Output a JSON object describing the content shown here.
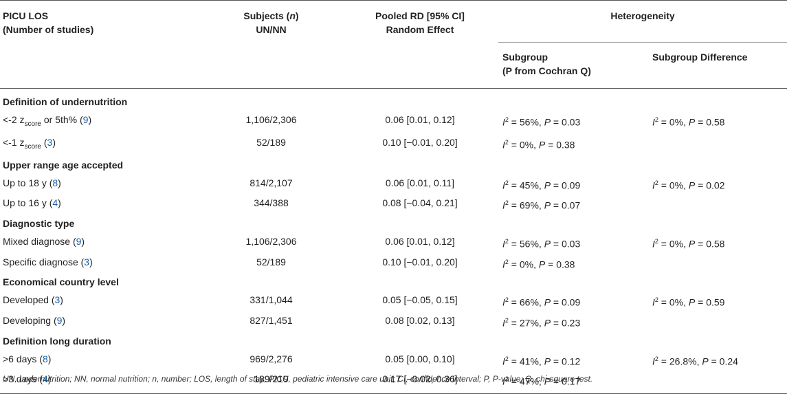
{
  "headers": {
    "col1_line1": "PICU LOS",
    "col1_line2": "(Number of studies)",
    "col2_line1_pre": "Subjects (",
    "col2_line1_n": "n",
    "col2_line1_post": ")",
    "col2_line2": "UN/NN",
    "col3_line1": "Pooled RD [95% CI]",
    "col3_line2": "Random Effect",
    "col4_group": "Heterogeneity",
    "sub1_line1": "Subgroup",
    "sub1_line2": "(P from Cochran Q)",
    "sub2": "Subgroup Difference"
  },
  "sections": [
    {
      "title": "Definition of undernutrition",
      "rows": [
        {
          "label_pre": "<-2 z",
          "label_sub": "score",
          "label_post": " or 5th% (",
          "n": "9",
          "label_end": ")",
          "subjects": "1,106/2,306",
          "rd": "0.06 [0.01, 0.12]",
          "i2": "56%",
          "p": "0.03",
          "diff_i2": "0%",
          "diff_p": "0.58"
        },
        {
          "label_pre": "<-1 z",
          "label_sub": "score",
          "label_post": " (",
          "n": "3",
          "label_end": ")",
          "subjects": "52/189",
          "rd": "0.10 [−0.01, 0.20]",
          "i2": "0%",
          "p": "0.38",
          "diff_i2": "",
          "diff_p": ""
        }
      ]
    },
    {
      "title": "Upper range age accepted",
      "rows": [
        {
          "label_pre": "Up to 18 y (",
          "label_sub": "",
          "label_post": "",
          "n": "8",
          "label_end": ")",
          "subjects": "814/2,107",
          "rd": "0.06 [0.01, 0.11]",
          "i2": "45%",
          "p": "0.09",
          "diff_i2": "0%",
          "diff_p": "0.02"
        },
        {
          "label_pre": "Up to 16 y (",
          "label_sub": "",
          "label_post": "",
          "n": "4",
          "label_end": ")",
          "subjects": "344/388",
          "rd": "0.08 [−0.04, 0.21]",
          "i2": "69%",
          "p": "0.07",
          "diff_i2": "",
          "diff_p": ""
        }
      ]
    },
    {
      "title": "Diagnostic type",
      "rows": [
        {
          "label_pre": "Mixed diagnose (",
          "label_sub": "",
          "label_post": "",
          "n": "9",
          "label_end": ")",
          "subjects": "1,106/2,306",
          "rd": "0.06 [0.01, 0.12]",
          "i2": "56%",
          "p": "0.03",
          "diff_i2": "0%",
          "diff_p": "0.58"
        },
        {
          "label_pre": "Specific diagnose (",
          "label_sub": "",
          "label_post": "",
          "n": "3",
          "label_end": ")",
          "subjects": "52/189",
          "rd": "0.10 [−0.01, 0.20]",
          "i2": "0%",
          "p": "0.38",
          "diff_i2": "",
          "diff_p": ""
        }
      ]
    },
    {
      "title": "Economical country level",
      "rows": [
        {
          "label_pre": "Developed (",
          "label_sub": "",
          "label_post": "",
          "n": "3",
          "label_end": ")",
          "subjects": "331/1,044",
          "rd": "0.05 [−0.05, 0.15]",
          "i2": "66%",
          "p": "0.09",
          "diff_i2": "0%",
          "diff_p": "0.59"
        },
        {
          "label_pre": "Developing (",
          "label_sub": "",
          "label_post": "",
          "n": "9",
          "label_end": ")",
          "subjects": "827/1,451",
          "rd": "0.08 [0.02, 0.13]",
          "i2": "27%",
          "p": "0.23",
          "diff_i2": "",
          "diff_p": ""
        }
      ]
    },
    {
      "title": "Definition long duration",
      "rows": [
        {
          "label_pre": ">6 days (",
          "label_sub": "",
          "label_post": "",
          "n": "8",
          "label_end": ")",
          "subjects": "969/2,276",
          "rd": "0.05 [0.00, 0.10]",
          "i2": "41%",
          "p": "0.12",
          "diff_i2": "26.8%",
          "diff_p": "0.24"
        },
        {
          "label_pre": ">3 days (",
          "label_sub": "",
          "label_post": "",
          "n": "4",
          "label_end": ")",
          "subjects": "189/219",
          "rd": "0.17 [−0.02, 0.36]",
          "i2": "47%",
          "p": "0.17",
          "diff_i2": "",
          "diff_p": ""
        }
      ]
    }
  ],
  "stat_labels": {
    "i": "I",
    "sup": "2",
    "eq": " = ",
    "p": "P",
    "comma": ", "
  },
  "footnote": "UN, undernutrition; NN, normal nutrition; n, number; LOS, length of stay; PICU, pediatric intensive care unit; CI, confidence interval; P, P-value; Q, chi-square test."
}
